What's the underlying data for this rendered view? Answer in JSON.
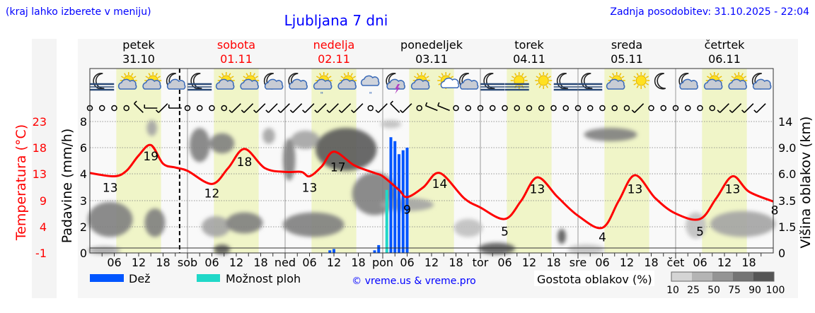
{
  "header": {
    "hint": "(kraj lahko izberete v meniju)",
    "title": "Ljubljana 7 dni",
    "updated": "Zadnja posodobitev: 31.10.2025 - 22:04"
  },
  "colors": {
    "header_text": "#0000ff",
    "temperature": "#ff0000",
    "rain": "#0055ff",
    "showers": "#20d8c8",
    "daylight": "#f0f5c8",
    "weekend": "#ff0000"
  },
  "chart_data": {
    "type": "meteogram",
    "current_time": "2025-10-31T22:04",
    "daylight_hours": [
      "06:30",
      "17:30"
    ],
    "days": [
      {
        "name": "petek",
        "date": "31.10",
        "abbr": "",
        "weekend": false
      },
      {
        "name": "sobota",
        "date": "01.11",
        "abbr": "sob",
        "weekend": true
      },
      {
        "name": "nedelja",
        "date": "02.11",
        "abbr": "ned",
        "weekend": true
      },
      {
        "name": "ponedeljek",
        "date": "03.11",
        "abbr": "pon",
        "weekend": false
      },
      {
        "name": "torek",
        "date": "04.11",
        "abbr": "tor",
        "weekend": false
      },
      {
        "name": "sreda",
        "date": "05.11",
        "abbr": "sre",
        "weekend": false
      },
      {
        "name": "četrtek",
        "date": "06.11",
        "abbr": "čet",
        "weekend": false
      }
    ],
    "hour_ticks": [
      "06",
      "12",
      "18"
    ],
    "axes": {
      "temperature": {
        "label": "Temperatura (°C)",
        "ticks": [
          "23",
          "18",
          "13",
          "9",
          "4",
          "-1"
        ],
        "range": [
          -1,
          23
        ]
      },
      "precipitation": {
        "label": "Padavine (mm/h)",
        "ticks": [
          "8",
          "6",
          "4",
          "3",
          "2",
          "0"
        ],
        "values": [
          8,
          6,
          4,
          3,
          2,
          0
        ]
      },
      "cloud_height": {
        "label": "Višina oblakov (km)",
        "ticks": [
          "14",
          "9.0",
          "6.0",
          "3.5",
          "1.5",
          "0"
        ],
        "values": [
          14,
          9,
          6,
          3.5,
          1.5,
          0
        ]
      }
    },
    "temperature": [
      [
        0,
        13.6
      ],
      [
        6,
        13
      ],
      [
        9,
        14
      ],
      [
        12,
        16.8
      ],
      [
        15,
        18.7
      ],
      [
        18,
        15.3
      ],
      [
        21,
        14.6
      ],
      [
        24,
        14
      ],
      [
        30,
        11.6
      ],
      [
        34,
        14.5
      ],
      [
        38,
        18
      ],
      [
        43,
        14.5
      ],
      [
        48,
        13.8
      ],
      [
        52,
        13.8
      ],
      [
        54,
        13
      ],
      [
        57,
        14.8
      ],
      [
        60,
        17.5
      ],
      [
        65,
        15
      ],
      [
        70,
        13.6
      ],
      [
        72,
        13
      ],
      [
        76,
        10.5
      ],
      [
        78,
        9.2
      ],
      [
        82,
        11
      ],
      [
        86,
        13.6
      ],
      [
        92,
        9
      ],
      [
        96,
        7.3
      ],
      [
        102,
        5.2
      ],
      [
        106,
        8.5
      ],
      [
        110,
        12.8
      ],
      [
        115,
        9.2
      ],
      [
        120,
        5.8
      ],
      [
        126,
        3.6
      ],
      [
        130,
        8.5
      ],
      [
        134,
        13.2
      ],
      [
        139,
        9
      ],
      [
        144,
        6.2
      ],
      [
        150,
        5.2
      ],
      [
        154,
        9
      ],
      [
        158,
        13
      ],
      [
        162,
        10.2
      ],
      [
        168,
        8.4
      ]
    ],
    "temperature_labels": [
      {
        "h": 5,
        "value": "13",
        "kind": "min"
      },
      {
        "h": 15,
        "value": "19",
        "kind": "max"
      },
      {
        "h": 30,
        "value": "12",
        "kind": "min"
      },
      {
        "h": 38,
        "value": "18",
        "kind": "max"
      },
      {
        "h": 54,
        "value": "13",
        "kind": "min"
      },
      {
        "h": 61,
        "value": "17",
        "kind": "max"
      },
      {
        "h": 78,
        "value": "9",
        "kind": "min"
      },
      {
        "h": 86,
        "value": "14",
        "kind": "max"
      },
      {
        "h": 102,
        "value": "5",
        "kind": "min"
      },
      {
        "h": 110,
        "value": "13",
        "kind": "max"
      },
      {
        "h": 126,
        "value": "4",
        "kind": "min"
      },
      {
        "h": 134,
        "value": "13",
        "kind": "max"
      },
      {
        "h": 150,
        "value": "5",
        "kind": "min"
      },
      {
        "h": 158,
        "value": "13",
        "kind": "max"
      },
      {
        "h": 168,
        "value": "8",
        "kind": "end"
      }
    ],
    "rain": [
      [
        59,
        0.2
      ],
      [
        60,
        0.3
      ],
      [
        70,
        0.2
      ],
      [
        71,
        0.6
      ],
      [
        74,
        6.8
      ],
      [
        75,
        6.5
      ],
      [
        76,
        5.5
      ],
      [
        77,
        5.8
      ],
      [
        78,
        6.0
      ]
    ],
    "showers_chance": [
      [
        73,
        3.4
      ]
    ],
    "clouds": [
      {
        "h": [
          0,
          10
        ],
        "km": [
          1.0,
          3.3
        ],
        "density": 75
      },
      {
        "h": [
          14,
          18
        ],
        "km": [
          1.0,
          2.8
        ],
        "density": 75
      },
      {
        "h": [
          0,
          7
        ],
        "km": [
          0,
          0.3
        ],
        "density": 50
      },
      {
        "h": [
          14.5,
          16
        ],
        "km": [
          11.5,
          14
        ],
        "density": 50
      },
      {
        "h": [
          25,
          29
        ],
        "km": [
          7.5,
          12.5
        ],
        "density": 75
      },
      {
        "h": [
          30,
          35
        ],
        "km": [
          8.5,
          11.5
        ],
        "density": 75
      },
      {
        "h": [
          28,
          34
        ],
        "km": [
          1.0,
          2.2
        ],
        "density": 50
      },
      {
        "h": [
          34,
          42
        ],
        "km": [
          1.2,
          2.5
        ],
        "density": 75
      },
      {
        "h": [
          31,
          34
        ],
        "km": [
          0,
          0.4
        ],
        "density": 90
      },
      {
        "h": [
          43,
          45
        ],
        "km": [
          10,
          12.5
        ],
        "density": 50
      },
      {
        "h": [
          48,
          50
        ],
        "km": [
          5.5,
          10.5
        ],
        "density": 75
      },
      {
        "h": [
          50,
          56
        ],
        "km": [
          9,
          12
        ],
        "density": 50
      },
      {
        "h": [
          56,
          70
        ],
        "km": [
          6.5,
          12.5
        ],
        "density": 90
      },
      {
        "h": [
          65,
          75
        ],
        "km": [
          2.5,
          6
        ],
        "density": 75
      },
      {
        "h": [
          48,
          62
        ],
        "km": [
          1.0,
          2.5
        ],
        "density": 75
      },
      {
        "h": [
          72,
          76
        ],
        "km": [
          13,
          14
        ],
        "density": 25
      },
      {
        "h": [
          72,
          84
        ],
        "km": [
          2.8,
          3.6
        ],
        "density": 50
      },
      {
        "h": [
          90,
          96
        ],
        "km": [
          1.0,
          2.0
        ],
        "density": 25
      },
      {
        "h": [
          96,
          104
        ],
        "km": [
          0,
          0.5
        ],
        "density": 90
      },
      {
        "h": [
          115.5,
          116.5
        ],
        "km": [
          0.6,
          1.3
        ],
        "density": 90
      },
      {
        "h": [
          118,
          126
        ],
        "km": [
          0,
          0.4
        ],
        "density": 25
      },
      {
        "h": [
          122,
          134
        ],
        "km": [
          10.5,
          12.5
        ],
        "density": 75
      },
      {
        "h": [
          147,
          151
        ],
        "km": [
          0.9,
          2.5
        ],
        "density": 25
      },
      {
        "h": [
          153,
          168
        ],
        "km": [
          1.0,
          2.6
        ],
        "density": 50
      }
    ],
    "weather_icons": [
      "moon-fog",
      "sun-cloud",
      "sun-cloud",
      "moon-cloud",
      "moon-fog",
      "sun-cloud",
      "sun-cloud",
      "moon-cloud",
      "moon-cloud",
      "sun-cloud-drizzle",
      "sun-cloud",
      "cloud-drizzle",
      "moon-cloud-thunder",
      "sun-cloud",
      "sun-small-cloud",
      "moon-cloud",
      "moon-fog",
      "sun-fog",
      "sun",
      "moon-fog",
      "moon-fog",
      "sun-cloud",
      "sun",
      "moon",
      "moon-cloud",
      "sun-cloud",
      "sun-cloud",
      "moon-cloud"
    ],
    "wind": [
      "calm",
      "calm",
      "calm",
      "calm",
      "NW",
      "W",
      "SW",
      "W",
      "calm",
      "calm",
      "calm",
      "calm",
      "SW",
      "SW",
      "SW",
      "SW",
      "SW",
      "SW",
      "SW",
      "SW",
      "SW",
      "SW",
      "SW",
      "calm",
      "N",
      "NW",
      "N",
      "calm",
      "WNW",
      "WNW",
      "calm",
      "calm",
      "calm",
      "calm",
      "calm",
      "calm",
      "calm",
      "calm",
      "calm",
      "calm",
      "calm",
      "calm",
      "calm",
      "calm",
      "calm",
      "SW",
      "calm",
      "calm",
      "calm",
      "calm",
      "calm",
      "calm",
      "SW",
      "SW",
      "SW",
      "SW"
    ]
  },
  "legend": {
    "rain": "Dež",
    "showers": "Možnost ploh",
    "credit": "© vreme.us & vreme.pro",
    "cloud_density": "Gostota oblakov (%)",
    "density_ticks": [
      "10",
      "25",
      "50",
      "75",
      "90",
      "100"
    ],
    "density_colors": [
      "#d4d4d4",
      "#b4b4b4",
      "#949494",
      "#747474",
      "#555555"
    ]
  }
}
